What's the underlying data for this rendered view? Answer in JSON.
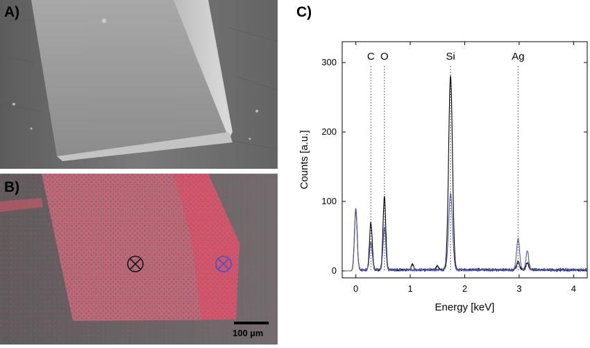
{
  "panel_labels": {
    "a": "A)",
    "b": "B)",
    "c": "C)"
  },
  "scale_bar": {
    "label": "100 µm"
  },
  "colors": {
    "black_spectrum": "#000000",
    "blue_spectrum": "#4a55b8",
    "overlay": "#e8405e",
    "marker_black": "#111111",
    "marker_blue": "#4a50c8"
  },
  "chart_data": {
    "type": "line",
    "xlabel": "Energy [keV]",
    "ylabel": "Counts [a.u.]",
    "xlim": [
      -0.25,
      4.25
    ],
    "ylim": [
      -10,
      330
    ],
    "xticks": [
      0,
      1,
      2,
      3,
      4
    ],
    "yticks": [
      0,
      100,
      200,
      300
    ],
    "grid": false,
    "annotations": [
      {
        "label": "C",
        "x": 0.277
      },
      {
        "label": "O",
        "x": 0.525
      },
      {
        "label": "Si",
        "x": 1.74
      },
      {
        "label": "Ag",
        "x": 2.98
      }
    ],
    "series": [
      {
        "color": "#000000",
        "peaks": [
          {
            "x": 0.0,
            "y": 88,
            "w": 0.025
          },
          {
            "x": 0.277,
            "y": 68,
            "w": 0.025
          },
          {
            "x": 0.525,
            "y": 105,
            "w": 0.025
          },
          {
            "x": 1.04,
            "y": 8,
            "w": 0.02
          },
          {
            "x": 1.5,
            "y": 6,
            "w": 0.02
          },
          {
            "x": 1.74,
            "y": 280,
            "w": 0.035
          },
          {
            "x": 2.98,
            "y": 12,
            "w": 0.025
          },
          {
            "x": 3.15,
            "y": 10,
            "w": 0.025
          }
        ]
      },
      {
        "color": "#4a55b8",
        "peaks": [
          {
            "x": 0.0,
            "y": 90,
            "w": 0.025
          },
          {
            "x": 0.277,
            "y": 40,
            "w": 0.025
          },
          {
            "x": 0.525,
            "y": 62,
            "w": 0.025
          },
          {
            "x": 1.74,
            "y": 110,
            "w": 0.035
          },
          {
            "x": 2.98,
            "y": 45,
            "w": 0.028
          },
          {
            "x": 3.15,
            "y": 27,
            "w": 0.025
          }
        ]
      }
    ]
  }
}
